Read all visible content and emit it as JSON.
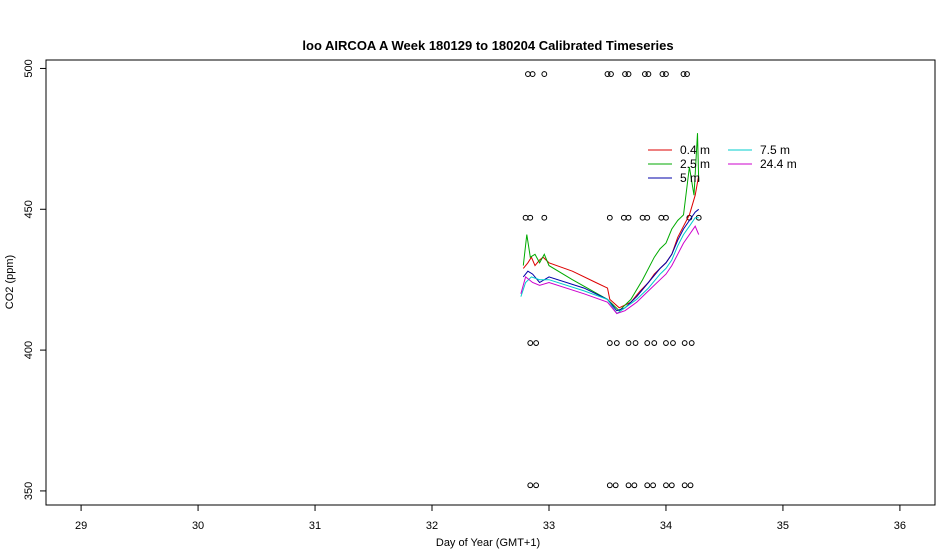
{
  "chart_data": {
    "type": "line",
    "title": "loo AIRCOA A  Week 180129 to 180204  Calibrated Timeseries",
    "xlabel": "Day of Year (GMT+1)",
    "ylabel": "CO2 (ppm)",
    "xlim": [
      28.7,
      36.3
    ],
    "ylim": [
      345,
      503
    ],
    "x_ticks": [
      29,
      30,
      31,
      32,
      33,
      34,
      35,
      36
    ],
    "y_ticks": [
      350,
      400,
      450,
      500
    ],
    "grid": false,
    "legend_position": "top-right",
    "series": [
      {
        "name": "0.4 m",
        "color": "#dd0000",
        "points": [
          [
            32.78,
            429
          ],
          [
            32.82,
            431
          ],
          [
            32.85,
            433
          ],
          [
            32.88,
            430
          ],
          [
            32.92,
            432
          ],
          [
            32.95,
            433
          ],
          [
            33.0,
            431
          ],
          [
            33.2,
            428
          ],
          [
            33.4,
            424
          ],
          [
            33.5,
            422
          ],
          [
            33.52,
            418
          ],
          [
            33.6,
            415
          ],
          [
            33.7,
            417
          ],
          [
            33.78,
            421
          ],
          [
            33.85,
            424
          ],
          [
            33.9,
            427
          ],
          [
            33.95,
            429
          ],
          [
            34.0,
            431
          ],
          [
            34.05,
            434
          ],
          [
            34.1,
            440
          ],
          [
            34.15,
            444
          ],
          [
            34.2,
            448
          ],
          [
            34.25,
            455
          ],
          [
            34.28,
            462
          ]
        ]
      },
      {
        "name": "2.5 m",
        "color": "#00aa00",
        "points": [
          [
            32.78,
            430
          ],
          [
            32.81,
            441
          ],
          [
            32.84,
            433
          ],
          [
            32.88,
            434
          ],
          [
            32.92,
            431
          ],
          [
            32.96,
            434
          ],
          [
            33.0,
            430
          ],
          [
            33.2,
            425
          ],
          [
            33.5,
            418
          ],
          [
            33.55,
            416
          ],
          [
            33.6,
            414
          ],
          [
            33.7,
            418
          ],
          [
            33.8,
            425
          ],
          [
            33.9,
            433
          ],
          [
            33.95,
            436
          ],
          [
            34.0,
            438
          ],
          [
            34.05,
            443
          ],
          [
            34.1,
            446
          ],
          [
            34.15,
            448
          ],
          [
            34.2,
            465
          ],
          [
            34.24,
            455
          ],
          [
            34.27,
            477
          ],
          [
            34.28,
            460
          ]
        ]
      },
      {
        "name": "5 m",
        "color": "#0000aa",
        "points": [
          [
            32.78,
            426
          ],
          [
            32.82,
            428
          ],
          [
            32.86,
            427
          ],
          [
            32.92,
            424
          ],
          [
            33.0,
            426
          ],
          [
            33.3,
            422
          ],
          [
            33.5,
            418
          ],
          [
            33.58,
            414
          ],
          [
            33.65,
            415
          ],
          [
            33.75,
            419
          ],
          [
            33.85,
            424
          ],
          [
            33.95,
            429
          ],
          [
            34.0,
            431
          ],
          [
            34.05,
            434
          ],
          [
            34.1,
            439
          ],
          [
            34.15,
            443
          ],
          [
            34.2,
            446
          ],
          [
            34.25,
            449
          ],
          [
            34.28,
            450
          ]
        ]
      },
      {
        "name": "7.5 m",
        "color": "#00cccc",
        "points": [
          [
            32.76,
            419
          ],
          [
            32.8,
            424
          ],
          [
            32.85,
            426
          ],
          [
            32.92,
            425
          ],
          [
            33.0,
            425
          ],
          [
            33.3,
            421
          ],
          [
            33.5,
            418
          ],
          [
            33.58,
            413
          ],
          [
            33.65,
            415
          ],
          [
            33.75,
            418
          ],
          [
            33.85,
            422
          ],
          [
            33.95,
            427
          ],
          [
            34.0,
            429
          ],
          [
            34.05,
            432
          ],
          [
            34.1,
            437
          ],
          [
            34.15,
            441
          ],
          [
            34.2,
            444
          ],
          [
            34.25,
            447
          ],
          [
            34.28,
            447
          ]
        ]
      },
      {
        "name": "24.4 m",
        "color": "#cc00cc",
        "points": [
          [
            32.76,
            420
          ],
          [
            32.8,
            426
          ],
          [
            32.86,
            424
          ],
          [
            32.92,
            423
          ],
          [
            33.0,
            424
          ],
          [
            33.3,
            420
          ],
          [
            33.5,
            417
          ],
          [
            33.58,
            413
          ],
          [
            33.65,
            414
          ],
          [
            33.75,
            417
          ],
          [
            33.85,
            421
          ],
          [
            33.95,
            425
          ],
          [
            34.0,
            427
          ],
          [
            34.05,
            430
          ],
          [
            34.1,
            434
          ],
          [
            34.15,
            438
          ],
          [
            34.2,
            441
          ],
          [
            34.25,
            444
          ],
          [
            34.28,
            441
          ]
        ]
      }
    ],
    "markers": {
      "shape": "circle-open",
      "y_levels": [
        498,
        447,
        402.5,
        352
      ],
      "points": [
        [
          32.82,
          498
        ],
        [
          32.86,
          498
        ],
        [
          32.96,
          498
        ],
        [
          33.5,
          498
        ],
        [
          33.53,
          498
        ],
        [
          33.65,
          498
        ],
        [
          33.68,
          498
        ],
        [
          33.82,
          498
        ],
        [
          33.85,
          498
        ],
        [
          33.97,
          498
        ],
        [
          34.0,
          498
        ],
        [
          34.15,
          498
        ],
        [
          34.18,
          498
        ],
        [
          32.8,
          447
        ],
        [
          32.84,
          447
        ],
        [
          32.96,
          447
        ],
        [
          33.52,
          447
        ],
        [
          33.64,
          447
        ],
        [
          33.68,
          447
        ],
        [
          33.8,
          447
        ],
        [
          33.84,
          447
        ],
        [
          33.96,
          447
        ],
        [
          34.0,
          447
        ],
        [
          34.2,
          447
        ],
        [
          34.28,
          447
        ],
        [
          32.84,
          402.5
        ],
        [
          32.89,
          402.5
        ],
        [
          33.52,
          402.5
        ],
        [
          33.58,
          402.5
        ],
        [
          33.68,
          402.5
        ],
        [
          33.74,
          402.5
        ],
        [
          33.84,
          402.5
        ],
        [
          33.9,
          402.5
        ],
        [
          34.0,
          402.5
        ],
        [
          34.06,
          402.5
        ],
        [
          34.16,
          402.5
        ],
        [
          34.22,
          402.5
        ],
        [
          32.84,
          352
        ],
        [
          32.89,
          352
        ],
        [
          33.52,
          352
        ],
        [
          33.57,
          352
        ],
        [
          33.68,
          352
        ],
        [
          33.73,
          352
        ],
        [
          33.84,
          352
        ],
        [
          33.89,
          352
        ],
        [
          34.0,
          352
        ],
        [
          34.05,
          352
        ],
        [
          34.16,
          352
        ],
        [
          34.21,
          352
        ]
      ]
    }
  }
}
